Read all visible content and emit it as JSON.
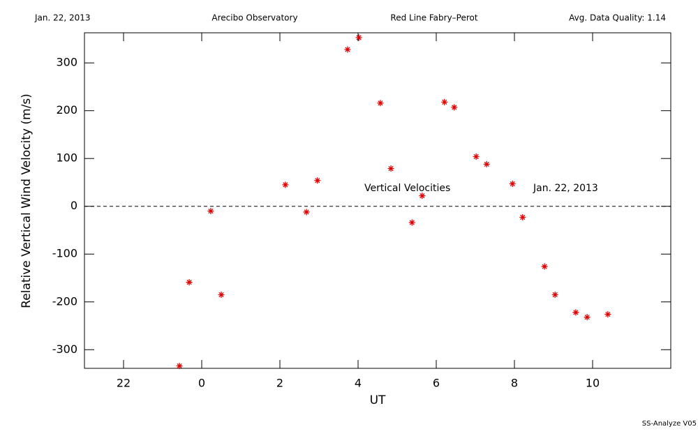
{
  "chart_data": {
    "type": "scatter",
    "header": [
      "Jan. 22, 2013",
      "Arecibo Observatory",
      "Red Line Fabry–Perot",
      "Avg. Data Quality: 1.14"
    ],
    "footer": "SS-Analyze V05",
    "x_label": "UT",
    "y_label": "Relative Vertical Wind Velocity (m/s)",
    "annotations": [
      "Vertical Velocities",
      "Jan. 22, 2013"
    ],
    "xlim": [
      21,
      36
    ],
    "xticks": [
      22,
      {
        "value": 24,
        "label": "0"
      },
      {
        "value": 26,
        "label": "2"
      },
      {
        "value": 28,
        "label": "4"
      },
      {
        "value": 30,
        "label": "6"
      },
      {
        "value": 32,
        "label": "8"
      },
      {
        "value": 34,
        "label": "10"
      }
    ],
    "ylim": [
      -339,
      363
    ],
    "yticks": [
      -300,
      -200,
      -100,
      0,
      100,
      200,
      300
    ],
    "zero_line": 0,
    "series": [
      {
        "color": "#e00000",
        "x": [
          23.43,
          23.68,
          24.23,
          24.5,
          26.14,
          26.68,
          26.96,
          27.73,
          28.02,
          28.57,
          28.84,
          29.38,
          29.64,
          30.21,
          30.46,
          31.02,
          31.29,
          31.95,
          32.21,
          32.77,
          33.04,
          33.57,
          33.86,
          34.39
        ],
        "values": [
          -334,
          -159,
          -10,
          -185,
          45,
          -12,
          54,
          328,
          353,
          216,
          79,
          -34,
          22,
          218,
          207,
          104,
          88,
          47,
          -23,
          -126,
          -185,
          -222,
          -232,
          -226
        ]
      }
    ]
  }
}
